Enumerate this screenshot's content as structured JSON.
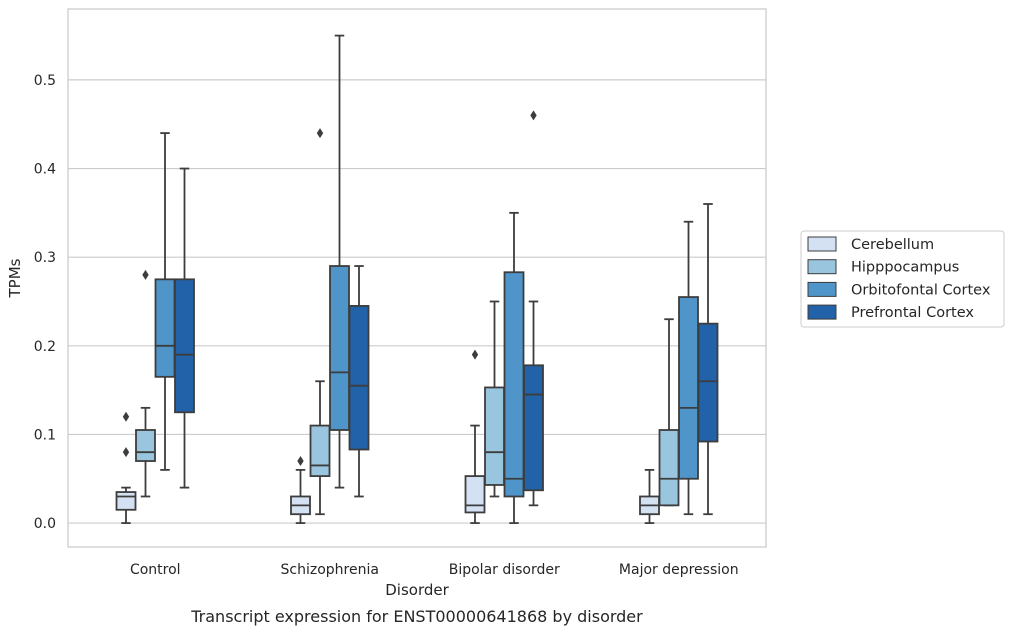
{
  "chart_data": {
    "type": "box",
    "caption": "Transcript expression for ENST00000641868 by disorder",
    "xlabel": "Disorder",
    "ylabel": "TPMs",
    "ylim": [
      -0.027,
      0.58
    ],
    "yticks": [
      "0.0",
      "0.1",
      "0.2",
      "0.3",
      "0.4",
      "0.5"
    ],
    "grid": "horizontal",
    "legend_placement": "right",
    "categories": [
      "Control",
      "Schizophrenia",
      "Bipolar disorder",
      "Major depression"
    ],
    "series": [
      {
        "name": "Cerebellum",
        "color": "#d3e1f2",
        "boxes": [
          {
            "q1": 0.015,
            "median": 0.03,
            "q3": 0.035,
            "whisker_low": 0.0,
            "whisker_high": 0.04,
            "outliers": [
              0.08,
              0.12
            ]
          },
          {
            "q1": 0.01,
            "median": 0.02,
            "q3": 0.03,
            "whisker_low": 0.0,
            "whisker_high": 0.06,
            "outliers": [
              0.07
            ]
          },
          {
            "q1": 0.012,
            "median": 0.02,
            "q3": 0.053,
            "whisker_low": 0.0,
            "whisker_high": 0.11,
            "outliers": [
              0.19
            ]
          },
          {
            "q1": 0.01,
            "median": 0.02,
            "q3": 0.03,
            "whisker_low": 0.0,
            "whisker_high": 0.06,
            "outliers": []
          }
        ]
      },
      {
        "name": "Hipppocampus",
        "color": "#9ac5df",
        "boxes": [
          {
            "q1": 0.07,
            "median": 0.08,
            "q3": 0.105,
            "whisker_low": 0.03,
            "whisker_high": 0.13,
            "outliers": [
              0.28
            ]
          },
          {
            "q1": 0.053,
            "median": 0.065,
            "q3": 0.11,
            "whisker_low": 0.01,
            "whisker_high": 0.16,
            "outliers": [
              0.44
            ]
          },
          {
            "q1": 0.043,
            "median": 0.08,
            "q3": 0.153,
            "whisker_low": 0.03,
            "whisker_high": 0.25,
            "outliers": []
          },
          {
            "q1": 0.02,
            "median": 0.05,
            "q3": 0.105,
            "whisker_low": 0.02,
            "whisker_high": 0.23,
            "outliers": []
          }
        ]
      },
      {
        "name": "Orbitofontal Cortex",
        "color": "#5095c9",
        "boxes": [
          {
            "q1": 0.165,
            "median": 0.2,
            "q3": 0.275,
            "whisker_low": 0.06,
            "whisker_high": 0.44,
            "outliers": []
          },
          {
            "q1": 0.105,
            "median": 0.17,
            "q3": 0.29,
            "whisker_low": 0.04,
            "whisker_high": 0.55,
            "outliers": []
          },
          {
            "q1": 0.03,
            "median": 0.05,
            "q3": 0.283,
            "whisker_low": 0.0,
            "whisker_high": 0.35,
            "outliers": []
          },
          {
            "q1": 0.05,
            "median": 0.13,
            "q3": 0.255,
            "whisker_low": 0.01,
            "whisker_high": 0.34,
            "outliers": []
          }
        ]
      },
      {
        "name": "Prefrontal Cortex",
        "color": "#2262a8",
        "boxes": [
          {
            "q1": 0.125,
            "median": 0.19,
            "q3": 0.275,
            "whisker_low": 0.04,
            "whisker_high": 0.4,
            "outliers": []
          },
          {
            "q1": 0.083,
            "median": 0.155,
            "q3": 0.245,
            "whisker_low": 0.03,
            "whisker_high": 0.29,
            "outliers": []
          },
          {
            "q1": 0.037,
            "median": 0.145,
            "q3": 0.178,
            "whisker_low": 0.02,
            "whisker_high": 0.25,
            "outliers": [
              0.46
            ]
          },
          {
            "q1": 0.092,
            "median": 0.16,
            "q3": 0.225,
            "whisker_low": 0.01,
            "whisker_high": 0.36,
            "outliers": []
          }
        ]
      }
    ]
  }
}
